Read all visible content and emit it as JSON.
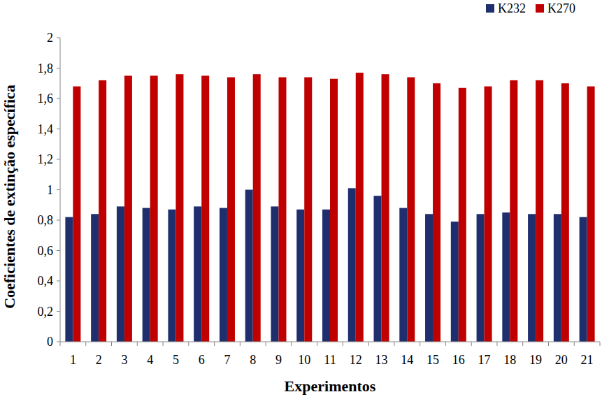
{
  "chart_data": {
    "type": "bar",
    "x_label": "Experimentos",
    "y_label": "Coeficientes de extinção específica",
    "categories": [
      1,
      2,
      3,
      4,
      5,
      6,
      7,
      8,
      9,
      10,
      11,
      12,
      13,
      14,
      15,
      16,
      17,
      18,
      19,
      20,
      21
    ],
    "series": [
      {
        "name": "K232",
        "color": "#1f2f6e",
        "values": [
          0.82,
          0.84,
          0.89,
          0.88,
          0.87,
          0.89,
          0.88,
          1.0,
          0.89,
          0.87,
          0.87,
          1.01,
          0.96,
          0.88,
          0.84,
          0.79,
          0.84,
          0.85,
          0.84,
          0.84,
          0.82
        ]
      },
      {
        "name": "K270",
        "color": "#c00000",
        "values": [
          1.68,
          1.72,
          1.75,
          1.75,
          1.76,
          1.75,
          1.74,
          1.76,
          1.74,
          1.74,
          1.73,
          1.77,
          1.76,
          1.74,
          1.7,
          1.67,
          1.68,
          1.72,
          1.72,
          1.7,
          1.68
        ]
      }
    ],
    "ylim": [
      0,
      2
    ],
    "yticks": [
      0,
      {
        "value": 0.2,
        "label": "0,2"
      },
      {
        "value": 0.4,
        "label": "0,4"
      },
      {
        "value": 0.6,
        "label": "0,6"
      },
      {
        "value": 0.8,
        "label": "0,8"
      },
      1,
      {
        "value": 1.2,
        "label": "1,2"
      },
      {
        "value": 1.4,
        "label": "1,4"
      },
      {
        "value": 1.6,
        "label": "1,6"
      },
      {
        "value": 1.8,
        "label": "1,8"
      },
      2
    ],
    "grid": false,
    "legend": "top-right"
  }
}
